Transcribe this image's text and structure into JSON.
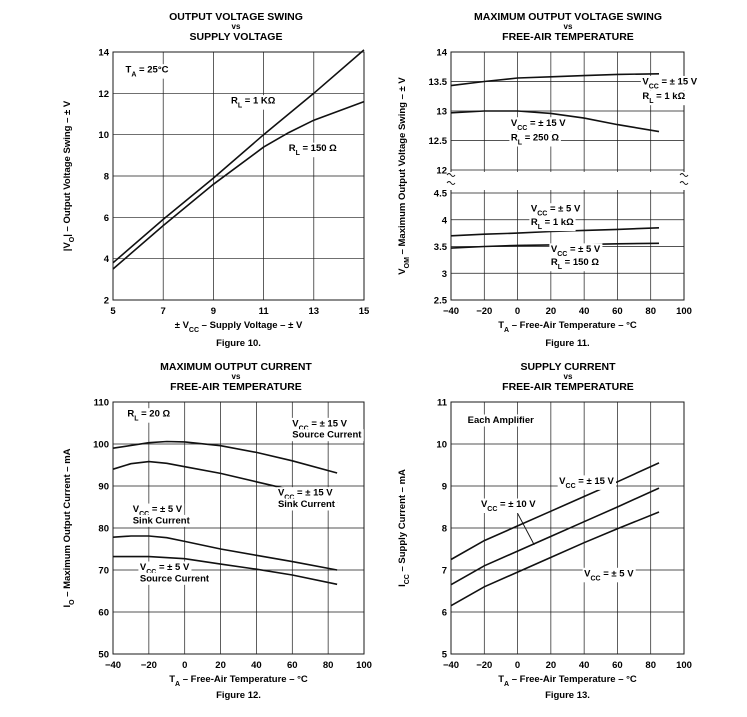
{
  "chart_data": [
    {
      "type": "line",
      "figure": "Figure 10.",
      "title": "OUTPUT VOLTAGE SWING",
      "vs": "vs",
      "subtitle": "SUPPLY VOLTAGE",
      "xlabel": "± VCC – Supply Voltage – ± V",
      "ylabel": "|VO| – Output Voltage Swing – ± V",
      "xlim": [
        5,
        15
      ],
      "ylim": [
        2,
        14
      ],
      "xticks": [
        5,
        7,
        9,
        11,
        13,
        15
      ],
      "yticks": [
        2,
        4,
        6,
        8,
        10,
        12,
        14
      ],
      "grid": true,
      "annotations": [
        {
          "text": "TA = 25°C",
          "x": 5.5,
          "y": 13.0
        },
        {
          "text": "RL = 1 KΩ",
          "x": 9.7,
          "y": 11.5
        },
        {
          "text": "RL = 150 Ω",
          "x": 12.0,
          "y": 9.2
        }
      ],
      "series": [
        {
          "name": "RL = 1 KΩ",
          "x": [
            5,
            7,
            9,
            11,
            13,
            15
          ],
          "y": [
            3.8,
            5.9,
            7.9,
            10.0,
            12.0,
            14.1
          ]
        },
        {
          "name": "RL = 150 Ω",
          "x": [
            5,
            7,
            9,
            11,
            12,
            13,
            15
          ],
          "y": [
            3.5,
            5.6,
            7.6,
            9.4,
            10.1,
            10.7,
            11.6
          ]
        }
      ]
    },
    {
      "type": "line",
      "figure": "Figure 11.",
      "title": "MAXIMUM OUTPUT VOLTAGE SWING",
      "vs": "vs",
      "subtitle": "FREE-AIR TEMPERATURE",
      "xlabel": "TA – Free-Air Temperature – °C",
      "ylabel": "VOM – Maximum Output Voltage Swing – ± V",
      "xlim": [
        -40,
        100
      ],
      "ylim": [
        2.5,
        14
      ],
      "axis_break": "between 4.5 and 12",
      "xticks": [
        -40,
        -20,
        0,
        20,
        40,
        60,
        80,
        100
      ],
      "yticks": [
        2.5,
        3,
        3.5,
        4,
        4.5,
        12,
        12.5,
        13,
        13.5,
        14
      ],
      "grid": true,
      "annotations": [
        {
          "text": "VCC = ± 15 V",
          "x": 75,
          "y": 13.45
        },
        {
          "text": "RL = 1 kΩ",
          "x": 75,
          "y": 13.2
        },
        {
          "text": "VCC = ± 15 V",
          "x": -4,
          "y": 12.75
        },
        {
          "text": "RL = 250 Ω",
          "x": -4,
          "y": 12.5
        },
        {
          "text": "VCC = ± 5 V",
          "x": 8,
          "y": 4.15
        },
        {
          "text": "RL = 1 kΩ",
          "x": 8,
          "y": 3.9
        },
        {
          "text": "VCC = ± 5 V",
          "x": 20,
          "y": 3.4
        },
        {
          "text": "RL = 150 Ω",
          "x": 20,
          "y": 3.15
        }
      ],
      "series": [
        {
          "name": "VCC = ± 15 V, RL = 1 kΩ",
          "x": [
            -40,
            -20,
            0,
            20,
            40,
            60,
            85
          ],
          "y": [
            13.43,
            13.5,
            13.56,
            13.58,
            13.6,
            13.62,
            13.63
          ]
        },
        {
          "name": "VCC = ± 15 V, RL = 250 Ω",
          "x": [
            -40,
            -20,
            0,
            20,
            40,
            60,
            85
          ],
          "y": [
            12.97,
            13.0,
            13.0,
            12.96,
            12.88,
            12.77,
            12.65
          ]
        },
        {
          "name": "VCC = ± 5 V, RL = 1 kΩ",
          "x": [
            -40,
            -20,
            0,
            20,
            40,
            60,
            85
          ],
          "y": [
            3.7,
            3.73,
            3.75,
            3.78,
            3.8,
            3.82,
            3.85
          ]
        },
        {
          "name": "VCC = ± 5 V, RL = 150 Ω",
          "x": [
            -40,
            -20,
            0,
            20,
            40,
            60,
            85
          ],
          "y": [
            3.47,
            3.5,
            3.52,
            3.53,
            3.54,
            3.55,
            3.56
          ]
        }
      ]
    },
    {
      "type": "line",
      "figure": "Figure 12.",
      "title": "MAXIMUM OUTPUT CURRENT",
      "vs": "vs",
      "subtitle": "FREE-AIR TEMPERATURE",
      "xlabel": "TA – Free-Air Temperature – °C",
      "ylabel": "IO – Maximum Output Current – mA",
      "xlim": [
        -40,
        100
      ],
      "ylim": [
        50,
        110
      ],
      "xticks": [
        -40,
        -20,
        0,
        20,
        40,
        60,
        80,
        100
      ],
      "yticks": [
        50,
        60,
        70,
        80,
        90,
        100,
        110
      ],
      "grid": true,
      "annotations": [
        {
          "text": "RL = 20 Ω",
          "x": -32,
          "y": 106.5
        },
        {
          "text": "VCC = ± 15 V",
          "x": 60,
          "y": 104.2
        },
        {
          "text": "Source Current",
          "x": 60,
          "y": 101.5
        },
        {
          "text": "VCC = ± 15 V",
          "x": 52,
          "y": 87.7
        },
        {
          "text": "Sink Current",
          "x": 52,
          "y": 85.0
        },
        {
          "text": "VCC = ± 5 V",
          "x": -29,
          "y": 83.8
        },
        {
          "text": "Sink Current",
          "x": -29,
          "y": 81.1
        },
        {
          "text": "VCC = ± 5 V",
          "x": -25,
          "y": 70.0
        },
        {
          "text": "Source Current",
          "x": -25,
          "y": 67.3
        }
      ],
      "series": [
        {
          "name": "VCC = ± 15 V Source Current",
          "x": [
            -40,
            -20,
            -10,
            0,
            20,
            40,
            60,
            85
          ],
          "y": [
            99,
            100.3,
            100.6,
            100.5,
            99.6,
            98,
            96,
            93.1
          ]
        },
        {
          "name": "VCC = ± 15 V Sink Current",
          "x": [
            -40,
            -30,
            -20,
            -10,
            0,
            20,
            40,
            60,
            85
          ],
          "y": [
            94,
            95.3,
            95.8,
            95.4,
            94.6,
            93,
            91,
            89,
            86
          ]
        },
        {
          "name": "VCC = ± 5 V Sink Current",
          "x": [
            -40,
            -30,
            -20,
            -10,
            0,
            20,
            40,
            60,
            85
          ],
          "y": [
            77.8,
            78.1,
            78.1,
            77.7,
            76.8,
            75,
            73.5,
            72,
            70
          ]
        },
        {
          "name": "VCC = ± 5 V Source Current",
          "x": [
            -40,
            -20,
            0,
            20,
            40,
            60,
            85
          ],
          "y": [
            73.2,
            73.2,
            72.7,
            71.4,
            70.2,
            68.8,
            66.6
          ]
        }
      ]
    },
    {
      "type": "line",
      "figure": "Figure 13.",
      "title": "SUPPLY CURRENT",
      "vs": "vs",
      "subtitle": "FREE-AIR TEMPERATURE",
      "xlabel": "TA – Free-Air Temperature – °C",
      "ylabel": "ICC – Supply Current – mA",
      "xlim": [
        -40,
        100
      ],
      "ylim": [
        5,
        11
      ],
      "xticks": [
        -40,
        -20,
        0,
        20,
        40,
        60,
        80,
        100
      ],
      "yticks": [
        5,
        6,
        7,
        8,
        9,
        10,
        11
      ],
      "grid": true,
      "annotations": [
        {
          "text": "Each Amplifier",
          "x": -30,
          "y": 10.5
        },
        {
          "text": "VCC = ± 15 V",
          "x": 25,
          "y": 9.05
        },
        {
          "text": "VCC = ± 10 V",
          "x": -22,
          "y": 8.5
        },
        {
          "text": "VCC = ± 5 V",
          "x": 40,
          "y": 6.85
        }
      ],
      "series": [
        {
          "name": "VCC = ± 15 V",
          "x": [
            -40,
            -20,
            0,
            20,
            40,
            60,
            85
          ],
          "y": [
            7.25,
            7.7,
            8.05,
            8.4,
            8.75,
            9.1,
            9.55
          ]
        },
        {
          "name": "VCC = ± 10 V",
          "x": [
            -40,
            -20,
            0,
            20,
            40,
            60,
            85
          ],
          "y": [
            6.65,
            7.1,
            7.45,
            7.8,
            8.15,
            8.5,
            8.95
          ]
        },
        {
          "name": "VCC = ± 5 V",
          "x": [
            -40,
            -20,
            0,
            20,
            40,
            60,
            85
          ],
          "y": [
            6.15,
            6.6,
            6.95,
            7.3,
            7.65,
            7.98,
            8.38
          ]
        }
      ]
    }
  ]
}
